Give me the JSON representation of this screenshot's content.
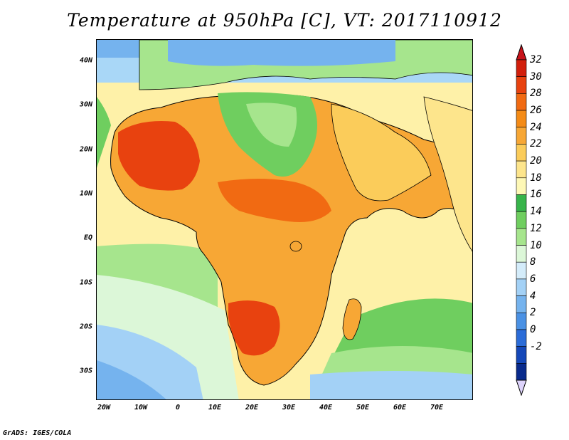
{
  "title": "Temperature at 950hPa [C], VT: 2017110912",
  "credit": "GrADS: IGES/COLA",
  "map": {
    "lat_labels": [
      "40N",
      "30N",
      "20N",
      "10N",
      "EQ",
      "10S",
      "20S",
      "30S"
    ],
    "lon_labels": [
      "20W",
      "10W",
      "0",
      "10E",
      "20E",
      "30E",
      "40E",
      "50E",
      "60E",
      "70E"
    ],
    "lat_values": [
      40,
      30,
      20,
      10,
      0,
      -10,
      -20,
      -30
    ],
    "lon_values": [
      -20,
      -10,
      0,
      10,
      20,
      30,
      40,
      50,
      60,
      70
    ],
    "lon_range": [
      -22,
      80
    ],
    "lat_range": [
      -37,
      44
    ]
  },
  "colorbar": {
    "levels": [
      "32",
      "30",
      "28",
      "26",
      "24",
      "22",
      "20",
      "18",
      "16",
      "14",
      "12",
      "10",
      "8",
      "6",
      "4",
      "2",
      "0",
      "-2"
    ],
    "colors_top_to_bottom": [
      "#d21f0c",
      "#e8420f",
      "#f16a12",
      "#f48b16",
      "#f7a735",
      "#fbcc5a",
      "#fde58c",
      "#fef8b6",
      "#37b44a",
      "#6fce5f",
      "#a6e58d",
      "#dcf7d8",
      "#d4ecfa",
      "#a3d1f6",
      "#75b3ee",
      "#4a91e4",
      "#2b6cd8",
      "#1447b8",
      "#082a8c"
    ],
    "end_triangle_top": "#c8131a",
    "end_triangle_bottom": "#ddd3fb"
  },
  "colors": {
    "background": "#ffffff",
    "ocean_cool": "#a9d7f7",
    "ocean_warm": "#fde58c",
    "land_hot": "#e8420f",
    "land_warm": "#f7a735",
    "land_mild": "#6fce5f"
  }
}
